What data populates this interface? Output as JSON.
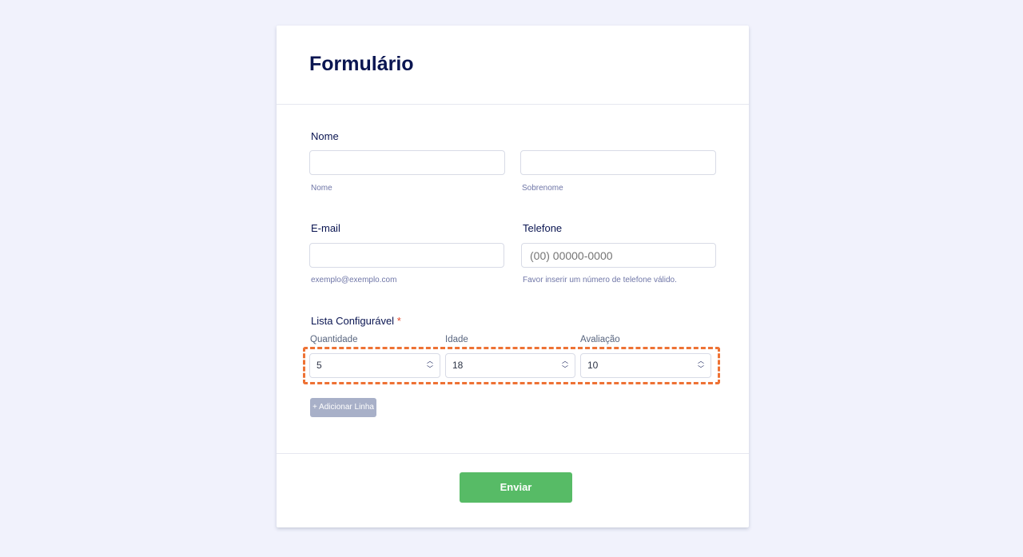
{
  "form": {
    "title": "Formulário",
    "name": {
      "label": "Nome",
      "first_sub": "Nome",
      "last_sub": "Sobrenome",
      "first_value": "",
      "last_value": ""
    },
    "email": {
      "label": "E-mail",
      "sub": "exemplo@exemplo.com",
      "value": ""
    },
    "phone": {
      "label": "Telefone",
      "placeholder": "(00) 00000-0000",
      "sub": "Favor inserir um número de telefone válido."
    },
    "list": {
      "label": "Lista Configurável",
      "required_mark": "*",
      "columns": [
        {
          "header": "Quantidade",
          "value": "5"
        },
        {
          "header": "Idade",
          "value": "18"
        },
        {
          "header": "Avaliação",
          "value": "10"
        }
      ],
      "add_row_label": "+ Adicionar Linha"
    },
    "submit_label": "Enviar"
  },
  "colors": {
    "background": "#f1f2fc",
    "submit": "#57bb66",
    "highlight": "#ee7234",
    "title": "#0a1551"
  },
  "icons": {
    "spinner": "chevron-up-down-icon"
  }
}
